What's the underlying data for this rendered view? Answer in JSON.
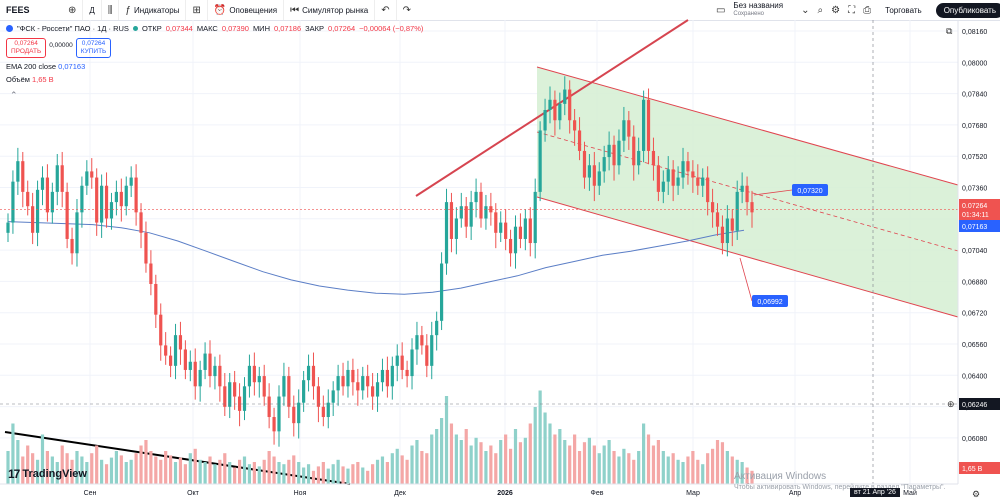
{
  "toolbar": {
    "symbol": "FEES",
    "interval": "Д",
    "indicators_label": "Индикаторы",
    "alerts_label": "Оповещения",
    "simulator_label": "Симулятор рынка",
    "layout_name": "Без названия",
    "layout_status": "Сохранено",
    "trade_label": "Торговать",
    "publish_label": "Опубликовать"
  },
  "legend": {
    "title": "\"ФСК - Россети\" ПАО · 1Д · RUS",
    "open_label": "ОТКР",
    "open": "0,07344",
    "high_label": "МАКС",
    "high": "0,07390",
    "low_label": "МИН",
    "low": "0,07186",
    "close_label": "ЗАКР",
    "close": "0,07264",
    "change": "−0,00064 (−0,87%)",
    "sell_price": "0,07264",
    "sell_label": "ПРОДАТЬ",
    "spread": "0,00000",
    "buy_price": "0,07264",
    "buy_label": "КУПИТЬ",
    "ema_label": "EMA 200 close",
    "ema_value": "0,07163",
    "volume_label": "Объём",
    "volume_value": "1,65 B"
  },
  "watermark": {
    "logo": "TradingView",
    "line1": "Активация Windows",
    "line2": "Чтобы активировать Windows, перейдите в раздел \"Параметры\"."
  },
  "colors": {
    "up": "#26a69a",
    "down": "#ef5350",
    "ema": "#5b7ec6",
    "channel": "#e0454f",
    "channel_fill": "#d5efd2",
    "trend": "#d64550"
  },
  "chart_data": {
    "type": "candlestick",
    "yaxis_ticks": [
      "0,08160",
      "0,08000",
      "0,07840",
      "0,07680",
      "0,07520",
      "0,07360",
      "0,07200",
      "0,07040",
      "0,06880",
      "0,06720",
      "0,06560",
      "0,06400",
      "0,06240",
      "0,06080"
    ],
    "xaxis_ticks": [
      "Сен",
      "Окт",
      "Ноя",
      "Дек",
      "2026",
      "Фев",
      "Мар",
      "Апр",
      "Май"
    ],
    "price_labels": {
      "last": "0,07264",
      "countdown": "01:34:11",
      "ema": "0,07163",
      "crosshair": "0,06246",
      "volume": "1,65 B"
    },
    "annotations": [
      "0,07320",
      "0,06992"
    ],
    "crosshair_date": "вт 21 Апр '26",
    "last_close": 0.07264,
    "ema_last": 0.07163,
    "ylim": [
      0.0604,
      0.0818
    ],
    "ohlc_path": [
      0.072,
      0.074,
      0.075,
      0.0735,
      0.0728,
      0.0715,
      0.0736,
      0.0742,
      0.0725,
      0.0735,
      0.0748,
      0.0735,
      0.0712,
      0.0705,
      0.0725,
      0.0738,
      0.0745,
      0.0742,
      0.072,
      0.0738,
      0.0722,
      0.073,
      0.0735,
      0.0728,
      0.0738,
      0.0742,
      0.0725,
      0.0715,
      0.07,
      0.069,
      0.0675,
      0.066,
      0.0655,
      0.065,
      0.0665,
      0.0658,
      0.0648,
      0.0652,
      0.064,
      0.0648,
      0.0656,
      0.0645,
      0.065,
      0.064,
      0.063,
      0.0642,
      0.0635,
      0.0628,
      0.064,
      0.065,
      0.0642,
      0.0645,
      0.0635,
      0.0625,
      0.0618,
      0.0635,
      0.0645,
      0.063,
      0.0622,
      0.0632,
      0.0643,
      0.065,
      0.064,
      0.063,
      0.0625,
      0.0632,
      0.0638,
      0.0645,
      0.064,
      0.0648,
      0.0642,
      0.0638,
      0.0645,
      0.064,
      0.0635,
      0.0642,
      0.0648,
      0.064,
      0.065,
      0.0655,
      0.0648,
      0.0645,
      0.0658,
      0.0665,
      0.066,
      0.065,
      0.0665,
      0.0672,
      0.07,
      0.073,
      0.0712,
      0.0722,
      0.0728,
      0.0718,
      0.073,
      0.0735,
      0.0722,
      0.0728,
      0.0725,
      0.0715,
      0.072,
      0.0712,
      0.0705,
      0.0718,
      0.0712,
      0.0722,
      0.071,
      0.0735,
      0.0765,
      0.0775,
      0.078,
      0.077,
      0.0778,
      0.0785,
      0.077,
      0.0765,
      0.0755,
      0.0742,
      0.0748,
      0.0738,
      0.0745,
      0.0752,
      0.0758,
      0.0748,
      0.076,
      0.077,
      0.0762,
      0.0748,
      0.0755,
      0.078,
      0.0755,
      0.0748,
      0.0735,
      0.074,
      0.0746,
      0.0738,
      0.0742,
      0.075,
      0.0745,
      0.0742,
      0.0738,
      0.0742,
      0.073,
      0.0725,
      0.0718,
      0.071,
      0.0722,
      0.0716,
      0.0735,
      0.0738,
      0.073,
      0.0725
    ],
    "ema_path": [
      0.07205,
      0.072,
      0.07195,
      0.0719,
      0.07175,
      0.0715,
      0.0711,
      0.0706,
      0.0701,
      0.0696,
      0.0692,
      0.0689,
      0.0687,
      0.06855,
      0.0685,
      0.0686,
      0.0688,
      0.0691,
      0.0694,
      0.0698,
      0.0701,
      0.0704,
      0.0706,
      0.07085,
      0.0711,
      0.0714,
      0.07163
    ],
    "volume_path": [
      0.3,
      0.55,
      0.4,
      0.25,
      0.35,
      0.28,
      0.22,
      0.45,
      0.3,
      0.25,
      0.2,
      0.35,
      0.28,
      0.22,
      0.3,
      0.25,
      0.2,
      0.28,
      0.35,
      0.22,
      0.18,
      0.24,
      0.3,
      0.26,
      0.2,
      0.22,
      0.28,
      0.35,
      0.4,
      0.3,
      0.25,
      0.22,
      0.3,
      0.26,
      0.2,
      0.24,
      0.18,
      0.28,
      0.32,
      0.22,
      0.2,
      0.25,
      0.18,
      0.22,
      0.28,
      0.2,
      0.15,
      0.22,
      0.25,
      0.18,
      0.2,
      0.16,
      0.22,
      0.3,
      0.25,
      0.2,
      0.18,
      0.22,
      0.26,
      0.2,
      0.15,
      0.18,
      0.12,
      0.16,
      0.2,
      0.14,
      0.18,
      0.22,
      0.16,
      0.14,
      0.18,
      0.2,
      0.15,
      0.12,
      0.18,
      0.22,
      0.25,
      0.2,
      0.28,
      0.32,
      0.26,
      0.22,
      0.35,
      0.4,
      0.3,
      0.28,
      0.45,
      0.5,
      0.6,
      0.8,
      0.55,
      0.45,
      0.4,
      0.5,
      0.35,
      0.42,
      0.38,
      0.3,
      0.35,
      0.28,
      0.4,
      0.45,
      0.32,
      0.5,
      0.38,
      0.42,
      0.55,
      0.7,
      0.85,
      0.65,
      0.55,
      0.45,
      0.5,
      0.4,
      0.35,
      0.45,
      0.3,
      0.38,
      0.42,
      0.35,
      0.28,
      0.35,
      0.4,
      0.3,
      0.25,
      0.32,
      0.28,
      0.22,
      0.3,
      0.55,
      0.45,
      0.35,
      0.4,
      0.3,
      0.25,
      0.28,
      0.22,
      0.2,
      0.25,
      0.3,
      0.22,
      0.18,
      0.28,
      0.32,
      0.4,
      0.38,
      0.3,
      0.25,
      0.22,
      0.2,
      0.15,
      0.12
    ],
    "channel": {
      "upper_start": [
        0.08,
        "Dec"
      ],
      "upper_end": [
        0.0736,
        "May"
      ],
      "lower_start": [
        0.0737,
        "Dec"
      ],
      "lower_end": [
        0.0672,
        "May"
      ]
    }
  }
}
